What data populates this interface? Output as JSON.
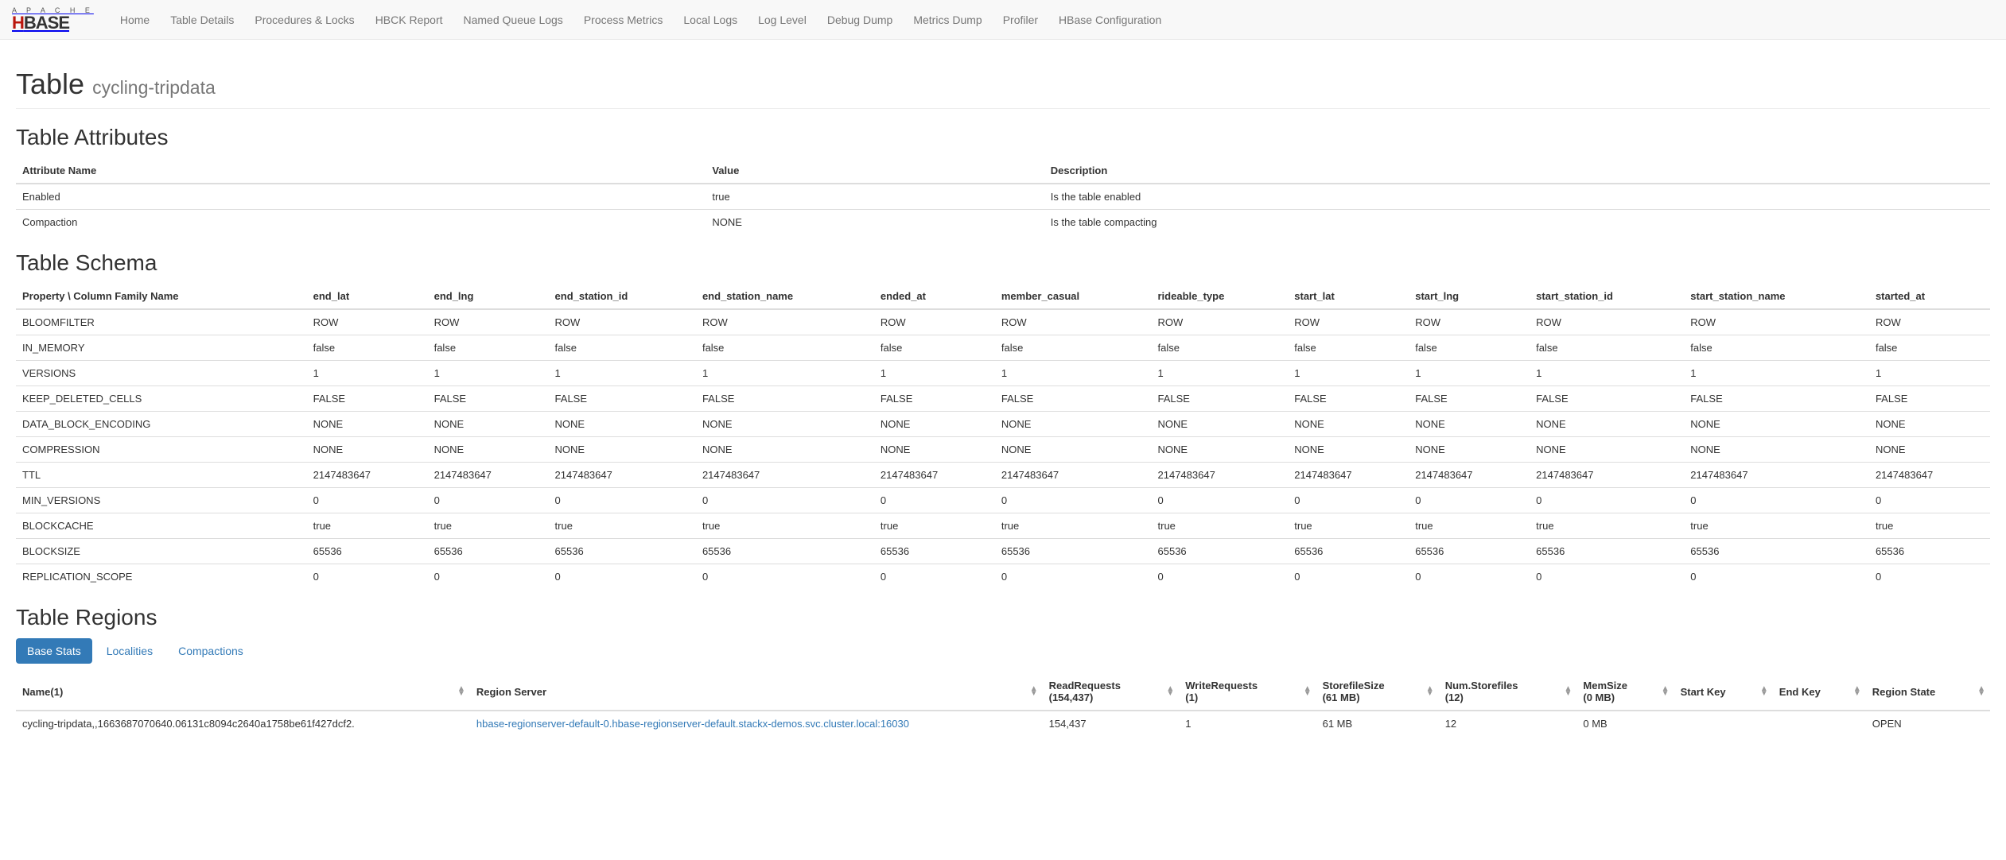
{
  "navbar": {
    "brand_top": "A P A C H E",
    "links": [
      "Home",
      "Table Details",
      "Procedures & Locks",
      "HBCK Report",
      "Named Queue Logs",
      "Process Metrics",
      "Local Logs",
      "Log Level",
      "Debug Dump",
      "Metrics Dump",
      "Profiler",
      "HBase Configuration"
    ]
  },
  "header": {
    "title": "Table",
    "subtitle": "cycling-tripdata"
  },
  "attributes": {
    "title": "Table Attributes",
    "columns": [
      "Attribute Name",
      "Value",
      "Description"
    ],
    "rows": [
      [
        "Enabled",
        "true",
        "Is the table enabled"
      ],
      [
        "Compaction",
        "NONE",
        "Is the table compacting"
      ]
    ]
  },
  "schema": {
    "title": "Table Schema",
    "first_col": "Property \\ Column Family Name",
    "families": [
      "end_lat",
      "end_lng",
      "end_station_id",
      "end_station_name",
      "ended_at",
      "member_casual",
      "rideable_type",
      "start_lat",
      "start_lng",
      "start_station_id",
      "start_station_name",
      "started_at"
    ],
    "props": [
      {
        "name": "BLOOMFILTER",
        "val": "ROW"
      },
      {
        "name": "IN_MEMORY",
        "val": "false"
      },
      {
        "name": "VERSIONS",
        "val": "1"
      },
      {
        "name": "KEEP_DELETED_CELLS",
        "val": "FALSE"
      },
      {
        "name": "DATA_BLOCK_ENCODING",
        "val": "NONE"
      },
      {
        "name": "COMPRESSION",
        "val": "NONE"
      },
      {
        "name": "TTL",
        "val": "2147483647"
      },
      {
        "name": "MIN_VERSIONS",
        "val": "0"
      },
      {
        "name": "BLOCKCACHE",
        "val": "true"
      },
      {
        "name": "BLOCKSIZE",
        "val": "65536"
      },
      {
        "name": "REPLICATION_SCOPE",
        "val": "0"
      }
    ]
  },
  "regions": {
    "title": "Table Regions",
    "tabs": [
      "Base Stats",
      "Localities",
      "Compactions"
    ],
    "active_tab": 0,
    "headers": {
      "name": "Name(1)",
      "region_server": "Region Server",
      "read_req": "ReadRequests",
      "read_req_sub": "(154,437)",
      "write_req": "WriteRequests",
      "write_req_sub": "(1)",
      "storefile_size": "StorefileSize",
      "storefile_size_sub": "(61 MB)",
      "num_storefiles": "Num.Storefiles",
      "num_storefiles_sub": "(12)",
      "memsize": "MemSize",
      "memsize_sub": "(0 MB)",
      "start_key": "Start Key",
      "end_key": "End Key",
      "region_state": "Region State"
    },
    "rows": [
      {
        "name": "cycling-tripdata,,1663687070640.06131c8094c2640a1758be61f427dcf2.",
        "region_server": "hbase-regionserver-default-0.hbase-regionserver-default.stackx-demos.svc.cluster.local:16030",
        "read_req": "154,437",
        "write_req": "1",
        "storefile_size": "61 MB",
        "num_storefiles": "12",
        "memsize": "0 MB",
        "start_key": "",
        "end_key": "",
        "region_state": "OPEN"
      }
    ]
  }
}
